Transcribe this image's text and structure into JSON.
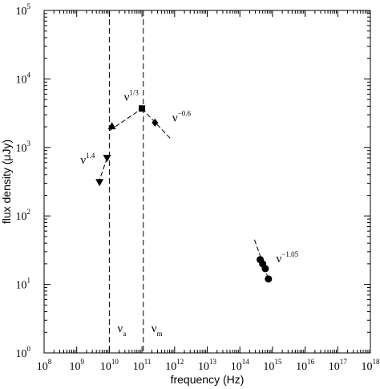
{
  "chart_data": {
    "type": "scatter",
    "title": "",
    "xlabel": "frequency (Hz)",
    "ylabel": "flux density (μJy)",
    "xscale": "log",
    "yscale": "log",
    "xlim": [
      100000000.0,
      1e+18
    ],
    "ylim": [
      1,
      100000
    ],
    "grid": false,
    "x_ticks": [
      {
        "value": 100000000.0,
        "base": "10",
        "exp": "8"
      },
      {
        "value": 1000000000.0,
        "base": "10",
        "exp": "9"
      },
      {
        "value": 10000000000.0,
        "base": "10",
        "exp": "10"
      },
      {
        "value": 100000000000.0,
        "base": "10",
        "exp": "11"
      },
      {
        "value": 1000000000000.0,
        "base": "10",
        "exp": "12"
      },
      {
        "value": 10000000000000.0,
        "base": "10",
        "exp": "13"
      },
      {
        "value": 100000000000000.0,
        "base": "10",
        "exp": "14"
      },
      {
        "value": 1000000000000000.0,
        "base": "10",
        "exp": "15"
      },
      {
        "value": 1e+16,
        "base": "10",
        "exp": "16"
      },
      {
        "value": 1e+17,
        "base": "10",
        "exp": "17"
      },
      {
        "value": 1e+18,
        "base": "10",
        "exp": "18"
      }
    ],
    "y_ticks": [
      {
        "value": 1,
        "base": "10",
        "exp": "0"
      },
      {
        "value": 10,
        "base": "10",
        "exp": "1"
      },
      {
        "value": 100,
        "base": "10",
        "exp": "2"
      },
      {
        "value": 1000,
        "base": "10",
        "exp": "3"
      },
      {
        "value": 10000,
        "base": "10",
        "exp": "4"
      },
      {
        "value": 100000,
        "base": "10",
        "exp": "5"
      }
    ],
    "vertical_lines": [
      {
        "x": 10000000000.0,
        "label_base": "ν",
        "label_sub": "a"
      },
      {
        "x": 110000000000.0,
        "label_base": "ν",
        "label_sub": "m"
      }
    ],
    "points": [
      {
        "marker": "triangle-down",
        "x": 8500000000.0,
        "y": 700
      },
      {
        "marker": "triangle-down",
        "x": 5000000000.0,
        "y": 310
      },
      {
        "marker": "triangle-up",
        "x": 12000000000.0,
        "y": 2050
      },
      {
        "marker": "square",
        "x": 100000000000.0,
        "y": 3700
      },
      {
        "marker": "diamond",
        "x": 250000000000.0,
        "y": 2300
      },
      {
        "marker": "circle",
        "x": 420000000000000.0,
        "y": 23
      },
      {
        "marker": "circle",
        "x": 500000000000000.0,
        "y": 20
      },
      {
        "marker": "circle",
        "x": 600000000000000.0,
        "y": 17
      },
      {
        "marker": "circle",
        "x": 750000000000000.0,
        "y": 12
      }
    ],
    "power_laws": [
      {
        "from": [
          8500000000.0,
          700
        ],
        "to": [
          4500000000.0,
          290
        ],
        "label_base": "ν",
        "label_exp": "1.4",
        "label_at": [
          1300000000.0,
          580
        ]
      },
      {
        "from": [
          10000000000.0,
          1750
        ],
        "to": [
          100000000000.0,
          3700
        ],
        "label_base": "ν",
        "label_exp": "1/3",
        "label_at": [
          28000000000.0,
          4800
        ]
      },
      {
        "from": [
          100000000000.0,
          3700
        ],
        "to": [
          800000000000.0,
          1300
        ],
        "label_base": "ν",
        "label_exp": "−0.6",
        "label_at": [
          850000000000.0,
          2400
        ]
      },
      {
        "from": [
          280000000000000.0,
          45
        ],
        "to": [
          800000000000000.0,
          11
        ],
        "label_base": "ν",
        "label_exp": "−1.05",
        "label_at": [
          1300000000000000.0,
          21
        ]
      }
    ],
    "legend": "none"
  }
}
